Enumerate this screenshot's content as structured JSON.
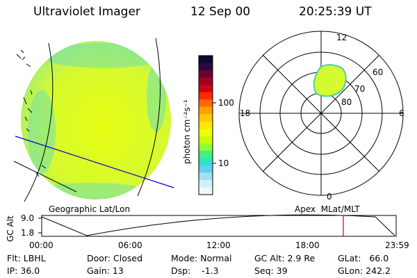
{
  "header": {
    "instrument": "Ultraviolet Imager",
    "date": "12 Sep 00",
    "time": "20:25:39 UT"
  },
  "colorbar": {
    "unit_label": "photon cm⁻²s⁻¹",
    "ticks": [
      "100",
      "10"
    ],
    "colors": [
      "#0a0a30",
      "#2a0a40",
      "#6a0030",
      "#a00020",
      "#d00018",
      "#ff2a00",
      "#ff6a00",
      "#ffa000",
      "#ffc800",
      "#ffe600",
      "#f0ff00",
      "#c8ff00",
      "#90ff30",
      "#40f080",
      "#30e0c8",
      "#60d0f0",
      "#a0e0f0",
      "#d0f0f8",
      "#eef8fb"
    ]
  },
  "globe_panel": {
    "label": "Geographic Lat/Lon"
  },
  "polar_panel": {
    "label": "Apex  MLat/MLT",
    "mlt_labels": {
      "top": "12",
      "left": "18",
      "right": "6",
      "bottom": "0"
    },
    "lat_labels": [
      "60",
      "70",
      "80"
    ]
  },
  "altitude_plot": {
    "ylabel": "GC Alt",
    "y_ticks": [
      "9.0",
      "1.8"
    ],
    "x_ticks": [
      "00:00",
      "06:00",
      "12:00",
      "18:00",
      "23:59"
    ],
    "marker_color": "#d00000"
  },
  "status": {
    "flt": "Flt: LBHL",
    "ip": "IP: 36.0",
    "door": "Door: Closed",
    "gain": "Gain: 13",
    "mode": "Mode: Normal",
    "dsp": "Dsp:    -1.3",
    "gc_alt": "GC Alt: 2.9 Re",
    "seq": "Seq: 39",
    "glat": "GLat:   66.0",
    "glon": "GLon: 242.2"
  }
}
